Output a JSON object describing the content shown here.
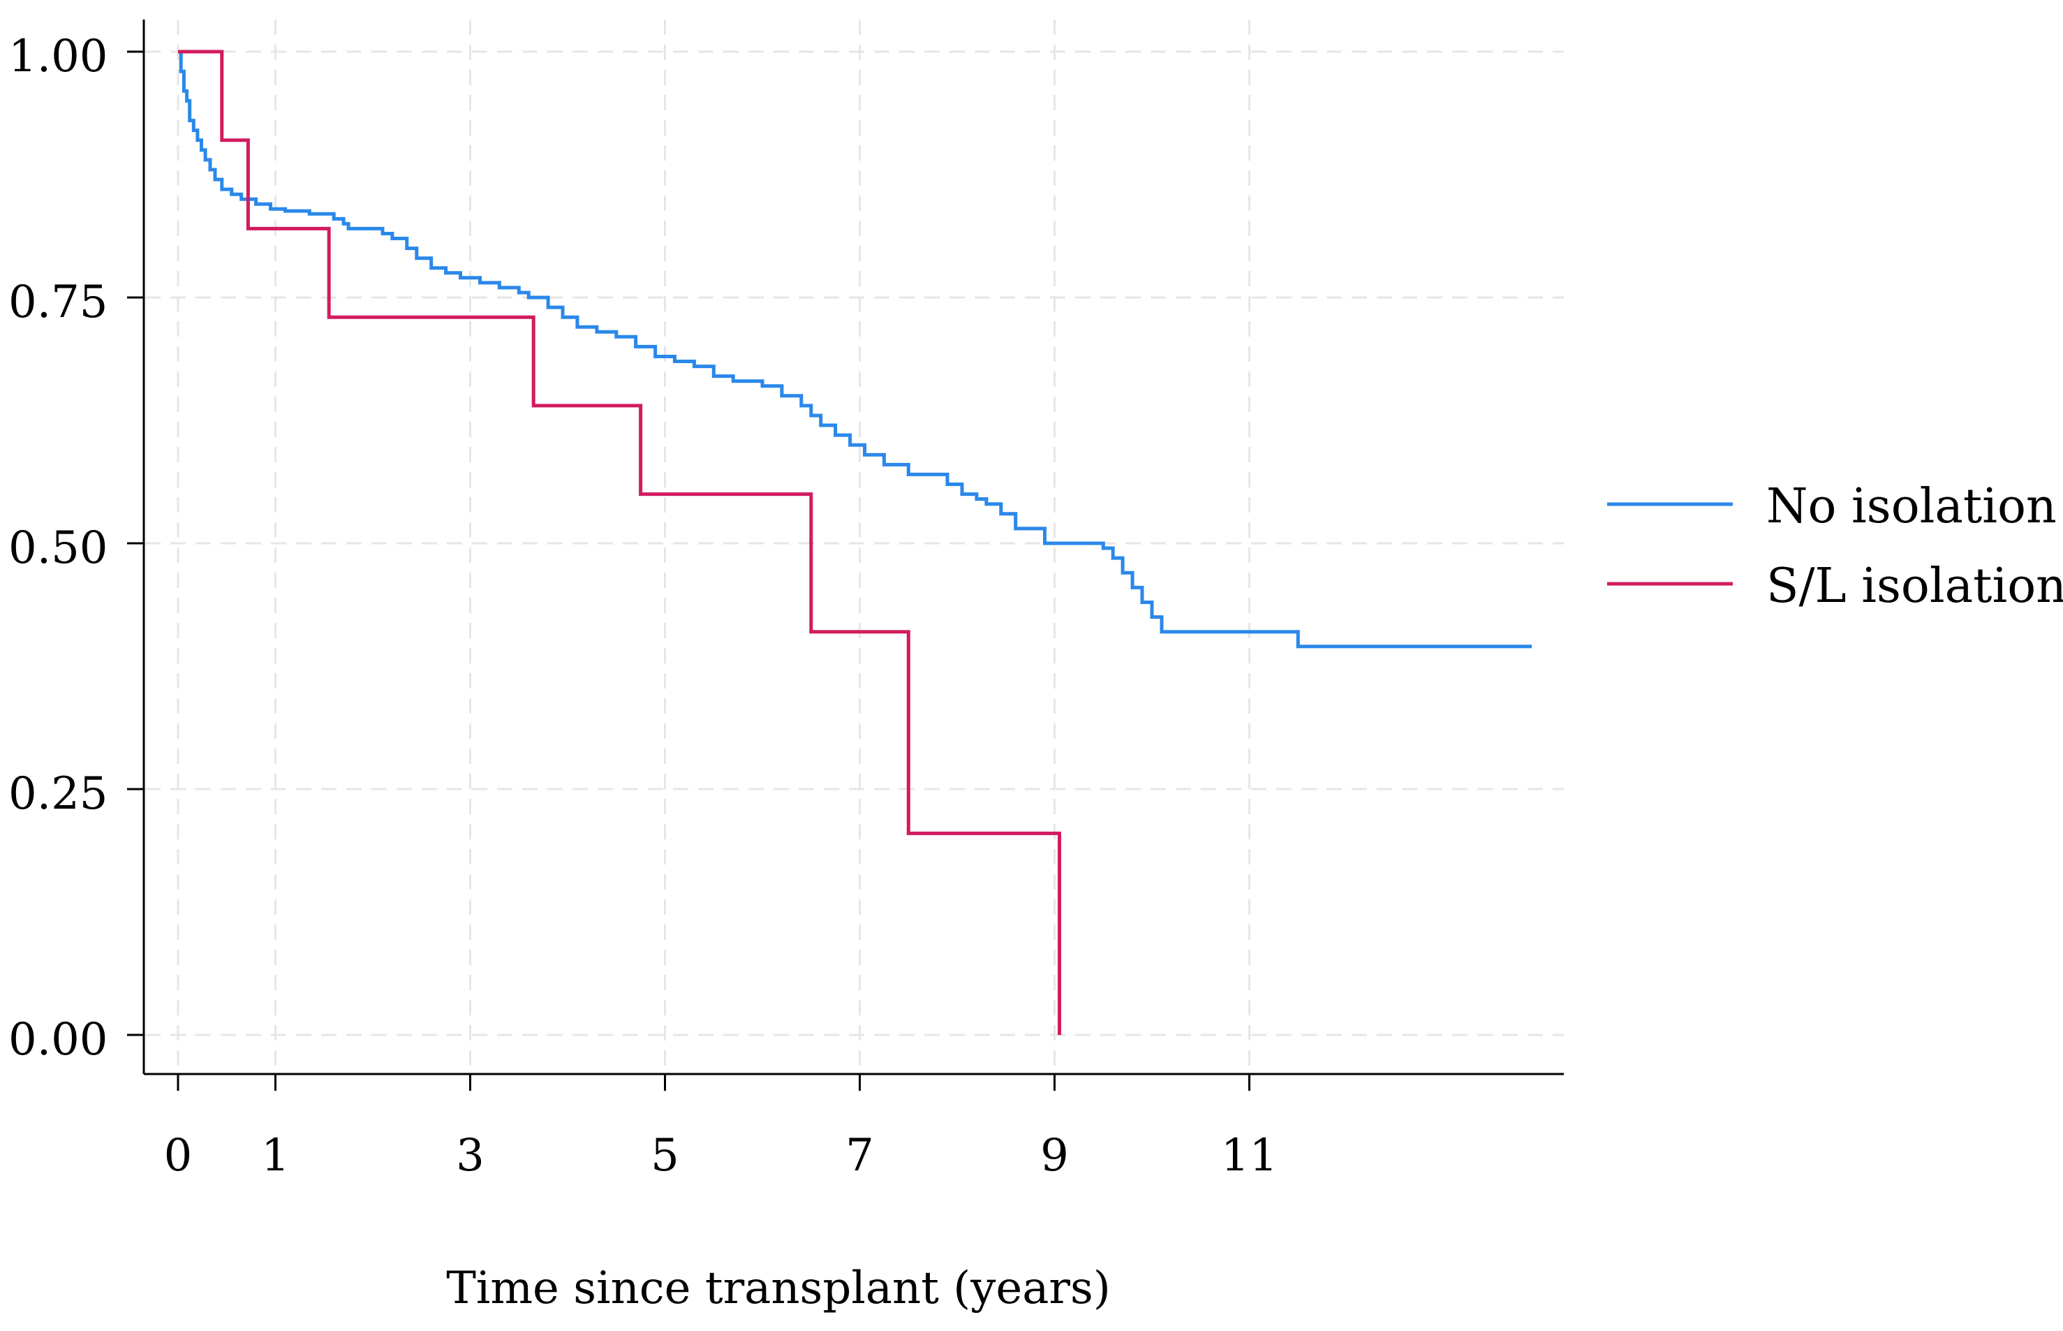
{
  "chart_data": {
    "type": "line",
    "title": "",
    "xlabel": "Time since transplant (years)",
    "ylabel": "",
    "xlim": [
      -0.35,
      14.0
    ],
    "ylim": [
      -0.08,
      1.05
    ],
    "xticks": [
      {
        "value": 0,
        "label": "0"
      },
      {
        "value": 1,
        "label": "1"
      },
      {
        "value": 3,
        "label": "3"
      },
      {
        "value": 5,
        "label": "5"
      },
      {
        "value": 7,
        "label": "7"
      },
      {
        "value": 9,
        "label": "9"
      },
      {
        "value": 11,
        "label": "11"
      }
    ],
    "yticks": [
      {
        "value": 0,
        "label": "0.00"
      },
      {
        "value": 0.25,
        "label": "0.25"
      },
      {
        "value": 0.5,
        "label": "0.50"
      },
      {
        "value": 0.75,
        "label": "0.75"
      },
      {
        "value": 1,
        "label": "1.00"
      }
    ],
    "grid": true,
    "legend_position": "right",
    "series": [
      {
        "name": "No isolation",
        "color": "#2a88ea",
        "step": true,
        "x": [
          0,
          0.03,
          0.06,
          0.09,
          0.12,
          0.16,
          0.2,
          0.24,
          0.28,
          0.33,
          0.38,
          0.45,
          0.55,
          0.65,
          0.8,
          0.95,
          1.1,
          1.35,
          1.6,
          1.7,
          1.75,
          2.1,
          2.2,
          2.35,
          2.45,
          2.6,
          2.75,
          2.9,
          3.1,
          3.3,
          3.5,
          3.6,
          3.8,
          3.95,
          4.1,
          4.3,
          4.5,
          4.7,
          4.9,
          5.1,
          5.3,
          5.5,
          5.7,
          6.0,
          6.2,
          6.4,
          6.5,
          6.6,
          6.75,
          6.9,
          7.05,
          7.25,
          7.5,
          7.9,
          8.05,
          8.2,
          8.3,
          8.45,
          8.6,
          8.9,
          9.5,
          9.6,
          9.7,
          9.8,
          9.9,
          10.0,
          10.1,
          11.5,
          13.9
        ],
        "y": [
          1.0,
          0.98,
          0.96,
          0.95,
          0.93,
          0.92,
          0.91,
          0.9,
          0.89,
          0.88,
          0.87,
          0.86,
          0.855,
          0.85,
          0.845,
          0.84,
          0.838,
          0.835,
          0.83,
          0.825,
          0.82,
          0.815,
          0.81,
          0.8,
          0.79,
          0.78,
          0.775,
          0.77,
          0.765,
          0.76,
          0.755,
          0.75,
          0.74,
          0.73,
          0.72,
          0.715,
          0.71,
          0.7,
          0.69,
          0.685,
          0.68,
          0.67,
          0.665,
          0.66,
          0.65,
          0.64,
          0.63,
          0.62,
          0.61,
          0.6,
          0.59,
          0.58,
          0.57,
          0.56,
          0.55,
          0.545,
          0.54,
          0.53,
          0.515,
          0.5,
          0.495,
          0.485,
          0.47,
          0.455,
          0.44,
          0.425,
          0.41,
          0.395,
          0.395
        ]
      },
      {
        "name": "S/L isolation",
        "color": "#d21b5f",
        "step": true,
        "x": [
          0,
          0.45,
          0.72,
          1.55,
          3.65,
          4.75,
          6.5,
          7.5,
          9.05,
          9.05
        ],
        "y": [
          1.0,
          0.91,
          0.82,
          0.73,
          0.64,
          0.55,
          0.41,
          0.205,
          0.205,
          0.0
        ]
      }
    ]
  }
}
